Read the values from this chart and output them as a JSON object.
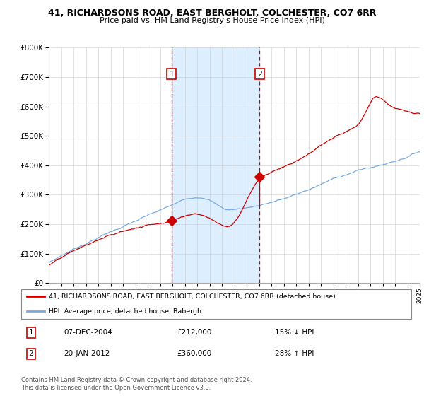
{
  "title_line1": "41, RICHARDSONS ROAD, EAST BERGHOLT, COLCHESTER, CO7 6RR",
  "title_line2": "Price paid vs. HM Land Registry's House Price Index (HPI)",
  "legend_red": "41, RICHARDSONS ROAD, EAST BERGHOLT, COLCHESTER, CO7 6RR (detached house)",
  "legend_blue": "HPI: Average price, detached house, Babergh",
  "transaction1_date": "07-DEC-2004",
  "transaction1_price": 212000,
  "transaction1_pct": "15% ↓ HPI",
  "transaction2_date": "20-JAN-2012",
  "transaction2_price": 360000,
  "transaction2_pct": "28% ↑ HPI",
  "footnote": "Contains HM Land Registry data © Crown copyright and database right 2024.\nThis data is licensed under the Open Government Licence v3.0.",
  "red_color": "#cc0000",
  "blue_color": "#7aaadd",
  "shade_color": "#ddeeff",
  "background_color": "#ffffff",
  "ylim": [
    0,
    800000
  ],
  "start_year": 1995,
  "end_year": 2025,
  "transaction1_year": 2004.92,
  "transaction2_year": 2012.05
}
